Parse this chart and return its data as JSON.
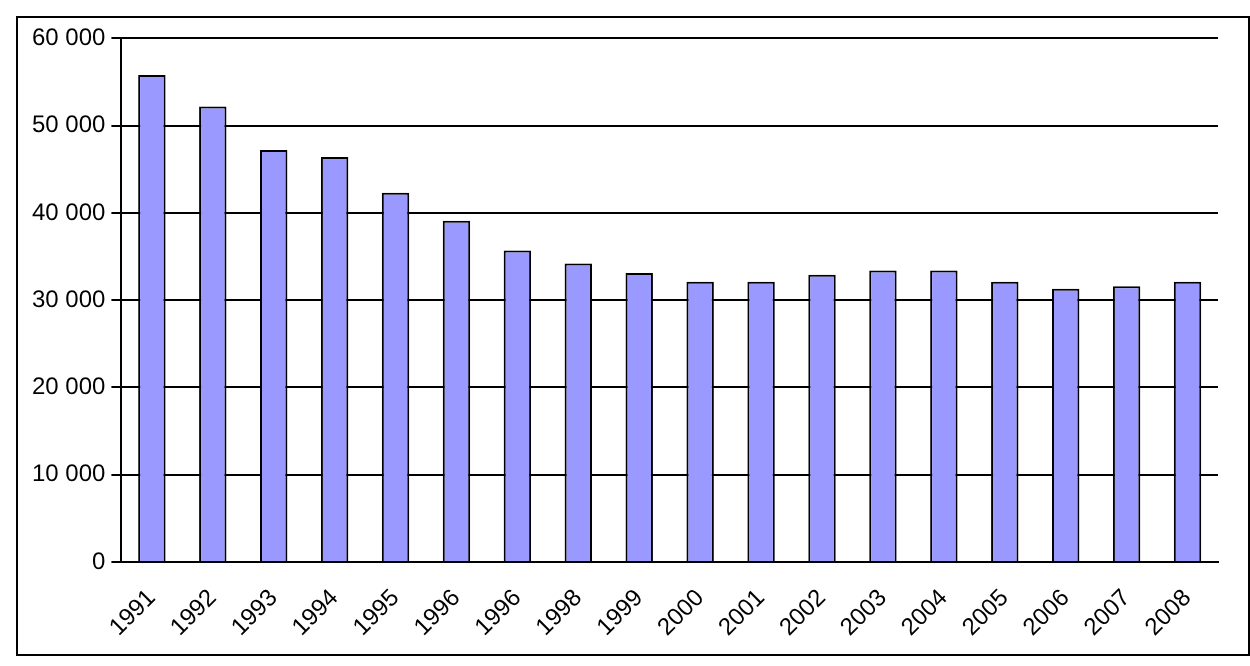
{
  "chart_data": {
    "type": "bar",
    "categories": [
      "1991",
      "1992",
      "1993",
      "1994",
      "1995",
      "1996",
      "1996",
      "1998",
      "1999",
      "2000",
      "2001",
      "2002",
      "2003",
      "2004",
      "2005",
      "2006",
      "2007",
      "2008"
    ],
    "values": [
      55800,
      52200,
      47200,
      46400,
      42300,
      39100,
      35700,
      34200,
      33100,
      32100,
      32100,
      32900,
      33400,
      33400,
      32100,
      31300,
      31600,
      32100
    ],
    "color": "#9999ff",
    "ylim": [
      0,
      60000
    ],
    "yticks": [
      {
        "value": 0,
        "label": "0"
      },
      {
        "value": 10000,
        "label": "10 000"
      },
      {
        "value": 20000,
        "label": "20 000"
      },
      {
        "value": 30000,
        "label": "30 000"
      },
      {
        "value": 40000,
        "label": "40 000"
      },
      {
        "value": 50000,
        "label": "50 000"
      },
      {
        "value": 60000,
        "label": "60 000"
      }
    ],
    "grid": "y",
    "legend": false
  }
}
